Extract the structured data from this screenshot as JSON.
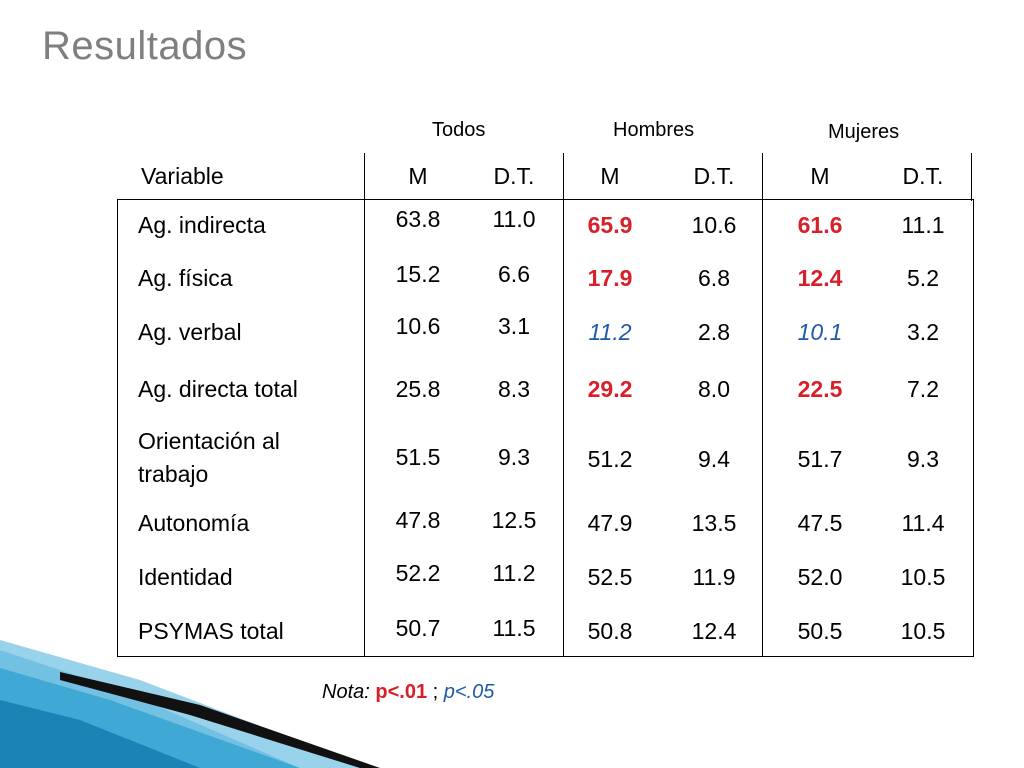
{
  "title": "Resultados",
  "groups": [
    "Todos",
    "Hombres",
    "Mujeres"
  ],
  "headers": {
    "variable": "Variable",
    "cols": [
      "M",
      "D.T.",
      "M",
      "D.T.",
      "M",
      "D.T."
    ]
  },
  "rows": [
    {
      "label": "Ag. indirecta",
      "values": [
        "63.8",
        "11.0",
        "65.9",
        "10.6",
        "61.6",
        "11.1"
      ],
      "styles": [
        "n",
        "n",
        "r",
        "n",
        "r",
        "n"
      ]
    },
    {
      "label": "Ag. física",
      "values": [
        "15.2",
        "6.6",
        "17.9",
        "6.8",
        "12.4",
        "5.2"
      ],
      "styles": [
        "n",
        "n",
        "r",
        "n",
        "r",
        "n"
      ]
    },
    {
      "label": "Ag. verbal",
      "values": [
        "10.6",
        "3.1",
        "11.2",
        "2.8",
        "10.1",
        "3.2"
      ],
      "styles": [
        "n",
        "n",
        "b",
        "n",
        "b",
        "n"
      ]
    },
    {
      "label": "Ag. directa total",
      "values": [
        "25.8",
        "8.3",
        "29.2",
        "8.0",
        "22.5",
        "7.2"
      ],
      "styles": [
        "n",
        "n",
        "r",
        "n",
        "r",
        "n"
      ]
    },
    {
      "label_line1": "Orientación al",
      "label_line2": "trabajo",
      "values": [
        "51.5",
        "9.3",
        "51.2",
        "9.4",
        "51.7",
        "9.3"
      ],
      "styles": [
        "n",
        "n",
        "n",
        "n",
        "n",
        "n"
      ]
    },
    {
      "label": "Autonomía",
      "values": [
        "47.8",
        "12.5",
        "47.9",
        "13.5",
        "47.5",
        "11.4"
      ],
      "styles": [
        "n",
        "n",
        "n",
        "n",
        "n",
        "n"
      ]
    },
    {
      "label": "Identidad",
      "values": [
        "52.2",
        "11.2",
        "52.5",
        "11.9",
        "52.0",
        "10.5"
      ],
      "styles": [
        "n",
        "n",
        "n",
        "n",
        "n",
        "n"
      ]
    },
    {
      "label": "PSYMAS total",
      "values": [
        "50.7",
        "11.5",
        "50.8",
        "12.4",
        "50.5",
        "10.5"
      ],
      "styles": [
        "n",
        "n",
        "n",
        "n",
        "n",
        "n"
      ]
    }
  ],
  "nota": {
    "lead": "Nota:",
    "red_part": "p<.01",
    "sep": " ; ",
    "blue_part": "p<.05"
  },
  "colors": {
    "title": "#7f7f7f",
    "significant_01": "#d8202a",
    "significant_05": "#1f5aa8",
    "accent_teal": "#2a9fd0"
  }
}
